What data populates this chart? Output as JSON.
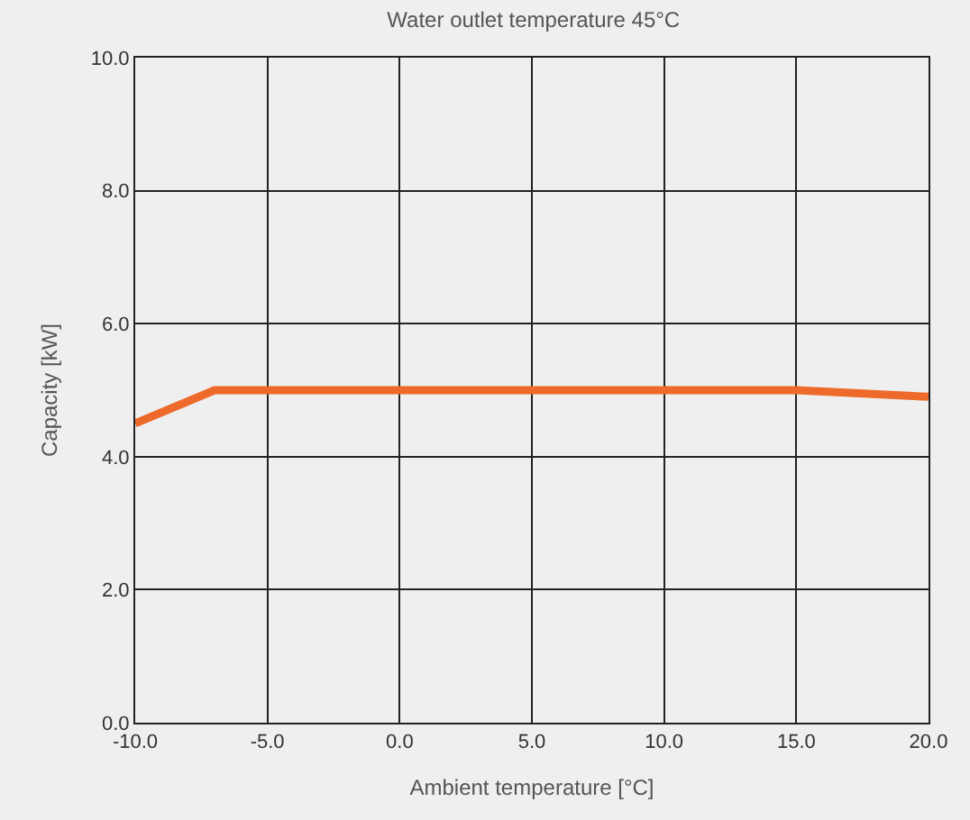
{
  "chart_data": {
    "type": "line",
    "title": "Water outlet temperature 45°C",
    "xlabel": "Ambient temperature [°C]",
    "ylabel": "Capacity [kW]",
    "x": [
      -10,
      -7,
      15,
      20
    ],
    "series": [
      {
        "color": "#ee6a2a",
        "values": [
          4.5,
          5.0,
          5.0,
          4.9
        ]
      }
    ],
    "xlim": [
      -10,
      20
    ],
    "xticks": [
      {
        "value": -10,
        "label": "-10.0"
      },
      {
        "value": -5,
        "label": "-5.0"
      },
      {
        "value": 0,
        "label": "0.0"
      },
      {
        "value": 5,
        "label": "5.0"
      },
      {
        "value": 10,
        "label": "10.0"
      },
      {
        "value": 15,
        "label": "15.0"
      },
      {
        "value": 20,
        "label": "20.0"
      }
    ],
    "ylim": [
      0,
      10
    ],
    "yticks": [
      {
        "value": 0,
        "label": "0.0"
      },
      {
        "value": 2,
        "label": "2.0"
      },
      {
        "value": 4,
        "label": "4.0"
      },
      {
        "value": 6,
        "label": "6.0"
      },
      {
        "value": 8,
        "label": "8.0"
      },
      {
        "value": 10,
        "label": "10.0"
      }
    ],
    "grid": true,
    "legend": false,
    "marker": "none",
    "line_style": "solid"
  }
}
